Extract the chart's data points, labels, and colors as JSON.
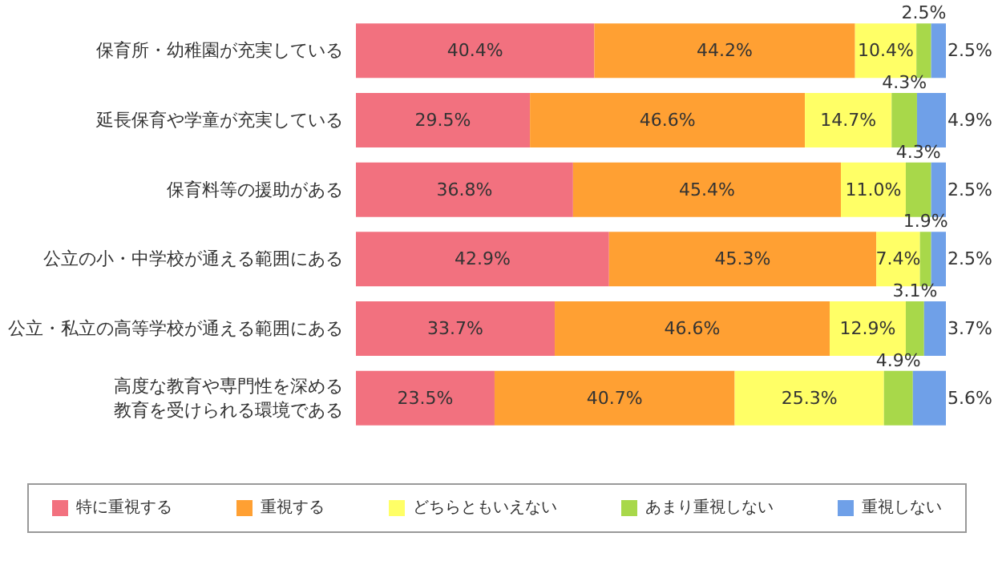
{
  "chart_data": {
    "type": "bar",
    "orientation": "horizontal",
    "stacked": true,
    "categories": [
      "保育所・幼稚園が充実している",
      "延長保育や学童が充実している",
      "保育料等の援助がある",
      "公立の小・中学校が通える範囲にある",
      "公立・私立の高等学校が通える範囲にある",
      "高度な教育や専門性を深める教育を受けられる環境である"
    ],
    "series": [
      {
        "name": "特に重視する",
        "color": "#f2717f",
        "values": [
          40.4,
          29.5,
          36.8,
          42.9,
          33.7,
          23.5
        ],
        "value_labels": [
          "40.4%",
          "29.5%",
          "36.8%",
          "42.9%",
          "33.7%",
          "23.5%"
        ]
      },
      {
        "name": "重視する",
        "color": "#ffa033",
        "values": [
          44.2,
          46.6,
          45.4,
          45.3,
          46.6,
          40.7
        ],
        "value_labels": [
          "44.2%",
          "46.6%",
          "45.4%",
          "45.3%",
          "46.6%",
          "40.7%"
        ]
      },
      {
        "name": "どちらともいえない",
        "color": "#ffff66",
        "values": [
          10.4,
          14.7,
          11.0,
          7.4,
          12.9,
          25.3
        ],
        "value_labels": [
          "10.4%",
          "14.7%",
          "11.0%",
          "7.4%",
          "12.9%",
          "25.3%"
        ]
      },
      {
        "name": "あまり重視しない",
        "color": "#a8d84a",
        "values": [
          2.5,
          4.3,
          4.3,
          1.9,
          3.1,
          4.9
        ],
        "value_labels": [
          "2.5%",
          "4.3%",
          "4.3%",
          "1.9%",
          "3.1%",
          "4.9%"
        ]
      },
      {
        "name": "重視しない",
        "color": "#6fa0e8",
        "values": [
          2.5,
          4.9,
          2.5,
          2.5,
          3.7,
          5.6
        ],
        "value_labels": [
          "2.5%",
          "4.9%",
          "2.5%",
          "2.5%",
          "3.7%",
          "5.6%"
        ]
      }
    ],
    "xlim": [
      0,
      100
    ],
    "tick_labels": "y",
    "grid": false,
    "legend": "bottom"
  }
}
